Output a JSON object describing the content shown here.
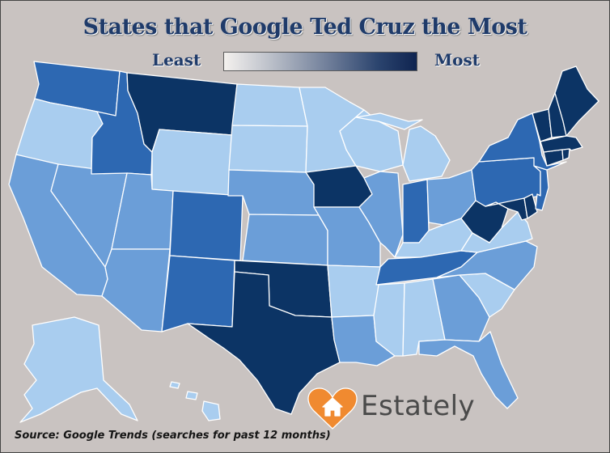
{
  "title": "States that Google Ted Cruz the Most",
  "legend": {
    "least_label": "Least",
    "most_label": "Most",
    "scale_colors": [
      "#f4f1ee",
      "#b9bec8",
      "#6d7c98",
      "#2b446e",
      "#0f2450"
    ]
  },
  "source": "Source: Google Trends (searches for past 12 months)",
  "logo": {
    "text": "Estately",
    "icon": "heart-house-icon",
    "color": "#f08a30"
  },
  "colors": {
    "background": "#c9c3c1",
    "level1": "#a9cdef",
    "level2": "#6b9ed8",
    "level3": "#2d68b2",
    "level4": "#0c3465",
    "border": "#ffffff"
  },
  "states": [
    {
      "name": "Washington",
      "level": 3
    },
    {
      "name": "Oregon",
      "level": 1
    },
    {
      "name": "California",
      "level": 2
    },
    {
      "name": "Nevada",
      "level": 2
    },
    {
      "name": "Idaho",
      "level": 3
    },
    {
      "name": "Montana",
      "level": 4
    },
    {
      "name": "Wyoming",
      "level": 1
    },
    {
      "name": "Utah",
      "level": 2
    },
    {
      "name": "Arizona",
      "level": 2
    },
    {
      "name": "Colorado",
      "level": 3
    },
    {
      "name": "New Mexico",
      "level": 3
    },
    {
      "name": "North Dakota",
      "level": 1
    },
    {
      "name": "South Dakota",
      "level": 1
    },
    {
      "name": "Nebraska",
      "level": 2
    },
    {
      "name": "Kansas",
      "level": 2
    },
    {
      "name": "Oklahoma",
      "level": 4
    },
    {
      "name": "Texas",
      "level": 4
    },
    {
      "name": "Minnesota",
      "level": 1
    },
    {
      "name": "Iowa",
      "level": 4
    },
    {
      "name": "Missouri",
      "level": 2
    },
    {
      "name": "Arkansas",
      "level": 1
    },
    {
      "name": "Louisiana",
      "level": 2
    },
    {
      "name": "Wisconsin",
      "level": 1
    },
    {
      "name": "Illinois",
      "level": 2
    },
    {
      "name": "Michigan",
      "level": 1
    },
    {
      "name": "Indiana",
      "level": 3
    },
    {
      "name": "Ohio",
      "level": 2
    },
    {
      "name": "Kentucky",
      "level": 1
    },
    {
      "name": "Tennessee",
      "level": 3
    },
    {
      "name": "Mississippi",
      "level": 1
    },
    {
      "name": "Alabama",
      "level": 1
    },
    {
      "name": "Georgia",
      "level": 2
    },
    {
      "name": "Florida",
      "level": 2
    },
    {
      "name": "South Carolina",
      "level": 1
    },
    {
      "name": "North Carolina",
      "level": 2
    },
    {
      "name": "Virginia",
      "level": 1
    },
    {
      "name": "West Virginia",
      "level": 4
    },
    {
      "name": "Maryland",
      "level": 4
    },
    {
      "name": "Delaware",
      "level": 4
    },
    {
      "name": "Pennsylvania",
      "level": 3
    },
    {
      "name": "New Jersey",
      "level": 3
    },
    {
      "name": "New York",
      "level": 3
    },
    {
      "name": "Connecticut",
      "level": 4
    },
    {
      "name": "Rhode Island",
      "level": 4
    },
    {
      "name": "Massachusetts",
      "level": 4
    },
    {
      "name": "Vermont",
      "level": 4
    },
    {
      "name": "New Hampshire",
      "level": 4
    },
    {
      "name": "Maine",
      "level": 4
    },
    {
      "name": "Alaska",
      "level": 1
    },
    {
      "name": "Hawaii",
      "level": 1
    }
  ]
}
